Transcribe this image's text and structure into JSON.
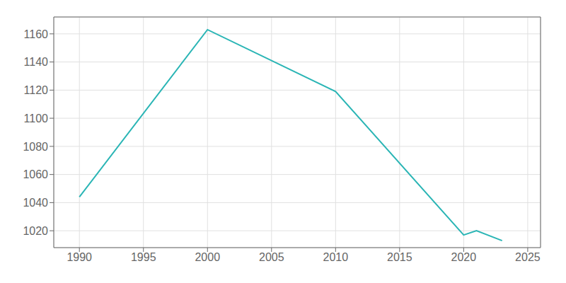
{
  "chart_data": {
    "type": "line",
    "x": [
      1990,
      2000,
      2010,
      2020,
      2021,
      2023
    ],
    "values": [
      1044,
      1163,
      1119,
      1017,
      1020,
      1013
    ],
    "color": "#2ab5b5",
    "xlim": [
      1988,
      2026
    ],
    "ylim": [
      1008,
      1172
    ],
    "xticks": [
      1990,
      1995,
      2000,
      2005,
      2010,
      2015,
      2020,
      2025
    ],
    "yticks": [
      1020,
      1040,
      1060,
      1080,
      1100,
      1120,
      1140,
      1160
    ],
    "grid": true
  }
}
